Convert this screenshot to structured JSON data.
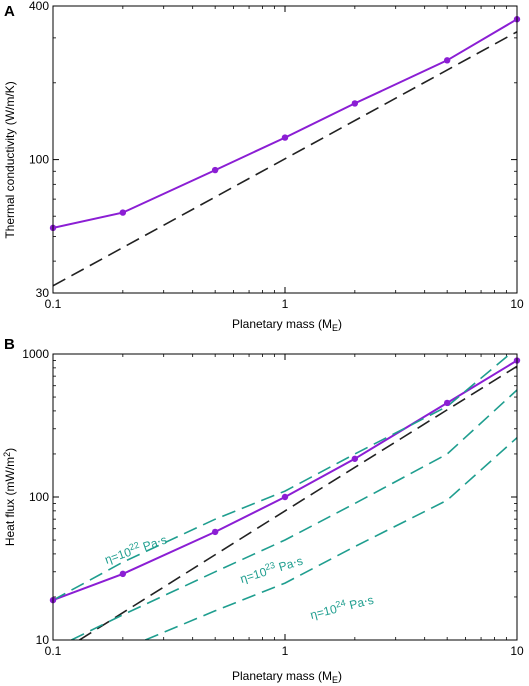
{
  "chart_data": [
    {
      "panel_label": "A",
      "type": "line",
      "xscale": "log",
      "yscale": "log",
      "xlim": [
        0.1,
        10
      ],
      "ylim": [
        30,
        400
      ],
      "xlabel": "Planetary mass (M",
      "xlabel_sub": "E",
      "xlabel_end": ")",
      "ylabel": "Thermal conductivity (W/m/K)",
      "xticks": [
        0.1,
        1,
        10
      ],
      "xtick_labels": [
        "0.1",
        "1",
        "10"
      ],
      "yticks": [
        30,
        100,
        400
      ],
      "ytick_labels": [
        "30",
        "100",
        "400"
      ],
      "colors": {
        "purple": "#8b1ed4",
        "black": "#222222"
      },
      "series": [
        {
          "style": "solid-markers",
          "color": "#8b1ed4",
          "x": [
            0.1,
            0.2,
            0.5,
            1,
            2,
            5,
            10
          ],
          "y": [
            54,
            62,
            91,
            122,
            166,
            245,
            355
          ]
        },
        {
          "style": "dashed",
          "color": "#222222",
          "x": [
            0.1,
            10
          ],
          "y": [
            32,
            317
          ]
        }
      ]
    },
    {
      "panel_label": "B",
      "type": "line",
      "xscale": "log",
      "yscale": "log",
      "xlim": [
        0.1,
        10
      ],
      "ylim": [
        10,
        1000
      ],
      "xlabel": "Planetary mass (M",
      "xlabel_sub": "E",
      "xlabel_end": ")",
      "ylabel": "Heat flux (mW/m",
      "ylabel_sup": "2",
      "ylabel_end": ")",
      "xticks": [
        0.1,
        1,
        10
      ],
      "xtick_labels": [
        "0.1",
        "1",
        "10"
      ],
      "yticks": [
        10,
        100,
        1000
      ],
      "ytick_labels": [
        "10",
        "100",
        "1000"
      ],
      "colors": {
        "purple": "#8b1ed4",
        "black": "#222222",
        "teal": "#1f9e8f"
      },
      "series": [
        {
          "style": "solid-markers",
          "color": "#8b1ed4",
          "x": [
            0.1,
            0.2,
            0.5,
            1,
            2,
            5,
            10
          ],
          "y": [
            19,
            29,
            57,
            100,
            185,
            455,
            900
          ]
        },
        {
          "style": "dashed",
          "color": "#222222",
          "x": [
            0.13,
            1,
            10
          ],
          "y": [
            10,
            80,
            820
          ]
        },
        {
          "style": "dashed",
          "color": "#1f9e8f",
          "x": [
            0.1,
            0.2,
            0.5,
            1,
            2,
            5,
            10
          ],
          "y": [
            19,
            35,
            70,
            110,
            200,
            430,
            1100
          ]
        },
        {
          "style": "dashed",
          "color": "#1f9e8f",
          "x": [
            0.12,
            0.2,
            0.5,
            1,
            2,
            5,
            10
          ],
          "y": [
            10,
            15,
            30,
            50,
            90,
            200,
            560
          ]
        },
        {
          "style": "dashed",
          "color": "#1f9e8f",
          "x": [
            0.25,
            0.5,
            1,
            2,
            5,
            10
          ],
          "y": [
            10,
            16,
            25,
            45,
            95,
            260
          ]
        }
      ],
      "annotations": [
        {
          "pre": "η=10",
          "sup": "22",
          "post": " Pa⋅s",
          "x": 0.17,
          "y": 34,
          "angle": -19
        },
        {
          "pre": "η=10",
          "sup": "23",
          "post": " Pa⋅s",
          "x": 0.65,
          "y": 25,
          "angle": -17
        },
        {
          "pre": "η=10",
          "sup": "24",
          "post": " Pa⋅s",
          "x": 1.3,
          "y": 14,
          "angle": -14
        }
      ]
    }
  ]
}
